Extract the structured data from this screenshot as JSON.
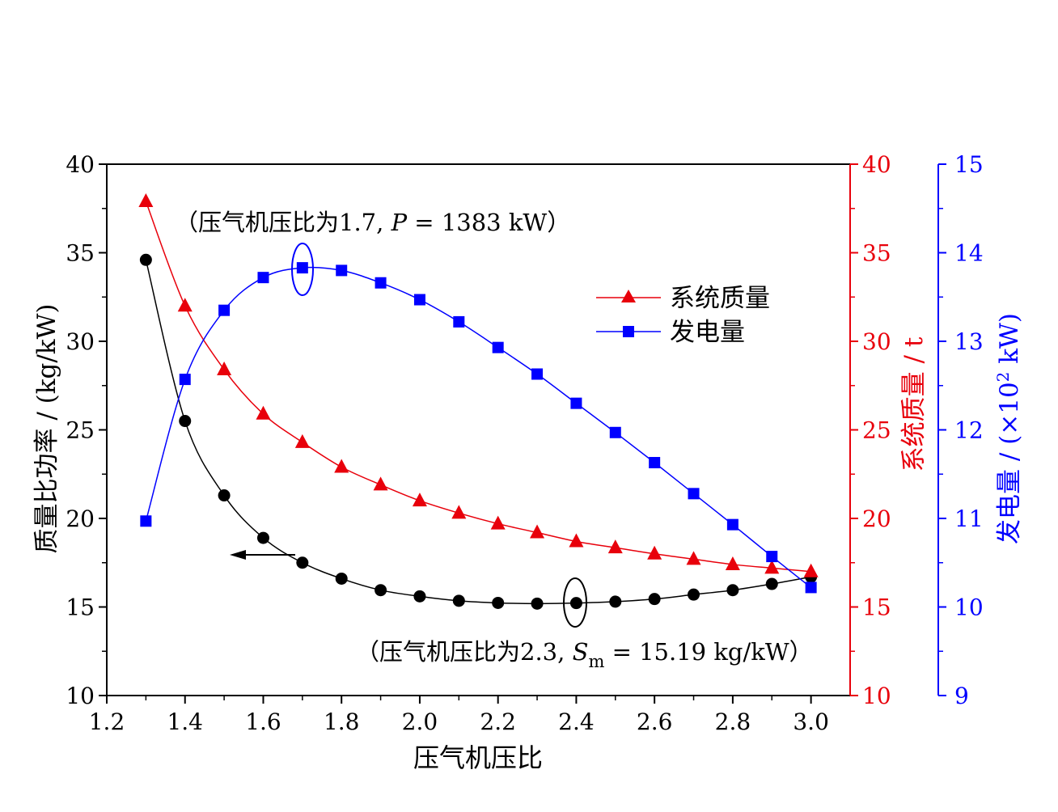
{
  "chart_data": {
    "type": "line",
    "x": [
      1.3,
      1.4,
      1.5,
      1.6,
      1.7,
      1.8,
      1.9,
      2.0,
      2.1,
      2.2,
      2.3,
      2.4,
      2.5,
      2.6,
      2.7,
      2.8,
      2.9,
      3.0
    ],
    "xlabel": "压气机压比",
    "xlim": [
      1.2,
      3.1
    ],
    "xticks": [
      "1.2",
      "1.4",
      "1.6",
      "1.8",
      "2.0",
      "2.2",
      "2.4",
      "2.6",
      "2.8",
      "3.0"
    ],
    "axes": {
      "left": {
        "label": "质量比功率 / (kg/kW)",
        "ylim": [
          10,
          40
        ],
        "ticks": [
          "10",
          "15",
          "20",
          "25",
          "30",
          "35",
          "40"
        ],
        "color": "#000000"
      },
      "right1": {
        "label": "系统质量 / t",
        "ylim": [
          10,
          40
        ],
        "ticks": [
          "10",
          "15",
          "20",
          "25",
          "30",
          "35",
          "40"
        ],
        "color": "#e8000b"
      },
      "right2": {
        "label_main": "发电量 / (×10",
        "label_sup": "2",
        "label_end": " kW)",
        "ylim": [
          9,
          15
        ],
        "ticks": [
          "9",
          "10",
          "11",
          "12",
          "13",
          "14",
          "15"
        ],
        "color": "#0000ff"
      }
    },
    "series": [
      {
        "name": "质量比功率",
        "axis": "left",
        "marker": "circle",
        "color": "#000000",
        "values": [
          34.6,
          25.5,
          21.3,
          18.9,
          17.5,
          16.6,
          15.95,
          15.6,
          15.35,
          15.23,
          15.19,
          15.22,
          15.3,
          15.45,
          15.7,
          15.95,
          16.3,
          16.7
        ]
      },
      {
        "name": "系统质量",
        "axis": "right1",
        "marker": "triangle",
        "color": "#e8000b",
        "values": [
          37.9,
          32.0,
          28.4,
          25.9,
          24.3,
          22.9,
          21.9,
          21.0,
          20.3,
          19.7,
          19.2,
          18.7,
          18.35,
          18.0,
          17.7,
          17.4,
          17.2,
          17.0
        ]
      },
      {
        "name": "发电量",
        "axis": "right2",
        "marker": "square",
        "color": "#0000ff",
        "values": [
          10.97,
          12.57,
          13.35,
          13.72,
          13.83,
          13.8,
          13.66,
          13.47,
          13.22,
          12.93,
          12.63,
          12.3,
          11.97,
          11.63,
          11.28,
          10.93,
          10.57,
          10.22
        ]
      }
    ],
    "legend": {
      "position": "top-right",
      "entries": [
        "系统质量",
        "发电量"
      ]
    },
    "annotations": {
      "top_note": "（压气机压比为1.7, ",
      "top_note_var": "P",
      "top_note_rest": " = 1383 kW）",
      "bottom_note": "（压气机压比为2.3, ",
      "bottom_note_var": "S",
      "bottom_note_sub": "m",
      "bottom_note_rest": " = 15.19 kg/kW）"
    }
  }
}
